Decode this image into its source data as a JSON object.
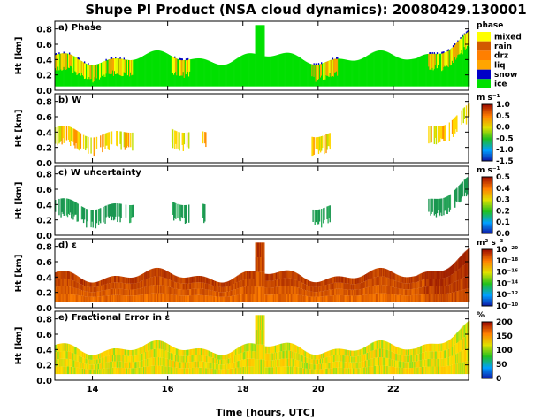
{
  "title": "Shupe PI Product (NSA cloud dynamics): 20080429.130001",
  "xlabel": "Time [hours, UTC]",
  "ylabel": "Ht [km]",
  "chart_data": {
    "type": "heatmap",
    "title": "Shupe PI Product (NSA cloud dynamics): 20080429.130001",
    "xlabel": "Time [hours, UTC]",
    "xlim": [
      13,
      24
    ],
    "xticks": [
      "14",
      "16",
      "18",
      "20",
      "22"
    ],
    "xtick_values": [
      14,
      16,
      18,
      20,
      22
    ],
    "ylim": [
      0,
      0.9
    ],
    "yticks": [
      "0.0",
      "0.2",
      "0.4",
      "0.6",
      "0.8"
    ],
    "ytick_values": [
      0,
      0.2,
      0.4,
      0.6,
      0.8
    ],
    "panels": [
      {
        "label": "a) Phase",
        "ylabel": "Ht [km]",
        "colorbar_kind": "categorical",
        "colorbar_title": "phase",
        "categories": [
          "mixed",
          "rain",
          "drz",
          "liq",
          "snow",
          "ice"
        ],
        "category_colors": [
          "#ffff00",
          "#d25a00",
          "#ff7f00",
          "#ffa500",
          "#0000c8",
          "#00e000"
        ]
      },
      {
        "label": "b) W",
        "ylabel": "Ht [km]",
        "colorbar_kind": "continuous",
        "colorbar_title": "m s⁻¹",
        "colorbar_ticks": [
          "1.0",
          "0.5",
          "0.0",
          "-0.5",
          "-1.0",
          "-1.5"
        ]
      },
      {
        "label": "c) W uncertainty",
        "ylabel": "Ht [km]",
        "colorbar_kind": "continuous",
        "colorbar_title": "m s⁻¹",
        "colorbar_ticks": [
          "0.5",
          "0.4",
          "0.3",
          "0.2",
          "0.1",
          "0.0"
        ]
      },
      {
        "label": "d) ε",
        "ylabel": "Ht [km]",
        "colorbar_kind": "continuous",
        "colorbar_title": "m² s⁻³",
        "colorbar_ticks": [
          "10⁻²⁰",
          "10⁻¹⁸",
          "10⁻¹⁶",
          "10⁻¹⁴",
          "10⁻¹²",
          "10⁻¹⁰"
        ]
      },
      {
        "label": "e) Fractional Error in ε",
        "ylabel": "Ht [km]",
        "colorbar_kind": "continuous",
        "colorbar_title": "%",
        "colorbar_ticks": [
          "200",
          "150",
          "100",
          "50",
          "0"
        ]
      }
    ],
    "colors": {
      "ice": "#00e000",
      "mixed": "#ffff00",
      "liq": "#ffa500",
      "snow": "#0000c8",
      "w_cloud": "#ffd700",
      "w_uncert": "#1a9650",
      "eps_low": "#ff8000",
      "eps_high": "#a02000",
      "frac_low": "#80e020",
      "frac_high": "#ffe000"
    }
  }
}
